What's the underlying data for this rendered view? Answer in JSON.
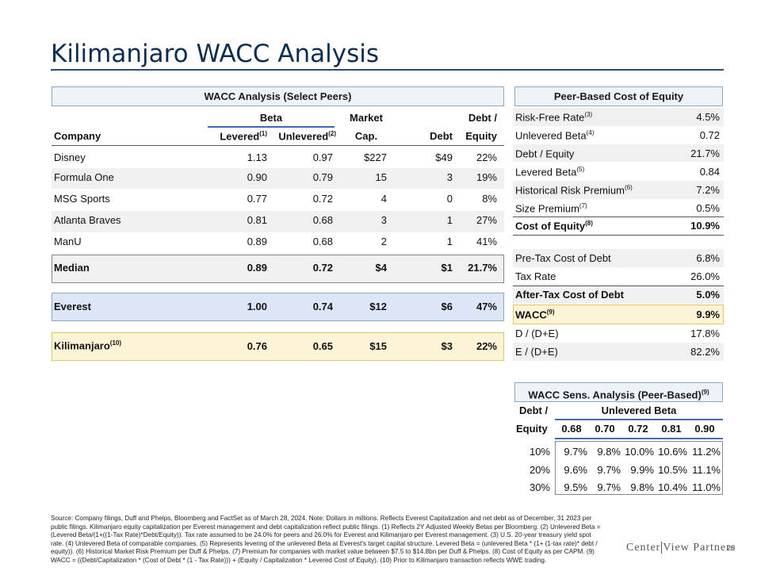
{
  "title": "Kilimanjaro WACC Analysis",
  "peers_table": {
    "banner": "WACC Analysis (Select Peers)",
    "group_headers": {
      "beta": "Beta",
      "market": "Market",
      "debt_equity": "Debt /"
    },
    "headers": {
      "company": "Company",
      "levered": "Levered",
      "levered_note": "(1)",
      "unlevered": "Unlevered",
      "unlevered_note": "(2)",
      "cap": "Cap.",
      "debt": "Debt",
      "equity": "Equity"
    },
    "rows": [
      {
        "company": "Disney",
        "levered": "1.13",
        "unlevered": "0.97",
        "cap": "$227",
        "debt": "$49",
        "de": "22%"
      },
      {
        "company": "Formula One",
        "levered": "0.90",
        "unlevered": "0.79",
        "cap": "15",
        "debt": "3",
        "de": "19%"
      },
      {
        "company": "MSG Sports",
        "levered": "0.77",
        "unlevered": "0.72",
        "cap": "4",
        "debt": "0",
        "de": "8%"
      },
      {
        "company": "Atlanta Braves",
        "levered": "0.81",
        "unlevered": "0.68",
        "cap": "3",
        "debt": "1",
        "de": "27%"
      },
      {
        "company": "ManU",
        "levered": "0.89",
        "unlevered": "0.68",
        "cap": "2",
        "debt": "1",
        "de": "41%"
      }
    ],
    "median": {
      "company": "Median",
      "levered": "0.89",
      "unlevered": "0.72",
      "cap": "$4",
      "debt": "$1",
      "de": "21.7%"
    },
    "everest": {
      "company": "Everest",
      "levered": "1.00",
      "unlevered": "0.74",
      "cap": "$12",
      "debt": "$6",
      "de": "47%"
    },
    "kilimanjaro": {
      "company": "Kilimanjaro",
      "note": "(10)",
      "levered": "0.76",
      "unlevered": "0.65",
      "cap": "$15",
      "debt": "$3",
      "de": "22%"
    }
  },
  "cost_of_equity": {
    "banner": "Peer-Based Cost of Equity",
    "rows": [
      {
        "label": "Risk-Free Rate",
        "note": "(3)",
        "value": "4.5%"
      },
      {
        "label": "Unlevered Beta",
        "note": "(4)",
        "value": "0.72"
      },
      {
        "label": "Debt / Equity",
        "note": "",
        "value": "21.7%"
      },
      {
        "label": "Levered Beta",
        "note": "(5)",
        "value": "0.84"
      },
      {
        "label": "Historical Risk Premium",
        "note": "(6)",
        "value": "7.2%"
      },
      {
        "label": "Size Premium",
        "note": "(7)",
        "value": "0.5%"
      }
    ],
    "total": {
      "label": "Cost of Equity",
      "note": "(8)",
      "value": "10.9%"
    },
    "debt_rows": [
      {
        "label": "Pre-Tax Cost of Debt",
        "value": "6.8%"
      },
      {
        "label": "Tax Rate",
        "value": "26.0%"
      }
    ],
    "after_tax": {
      "label": "After-Tax Cost of Debt",
      "value": "5.0%"
    },
    "wacc": {
      "label": "WACC",
      "note": "(9)",
      "value": "9.9%"
    },
    "cap_rows": [
      {
        "label": "D / (D+E)",
        "value": "17.8%"
      },
      {
        "label": "E / (D+E)",
        "value": "82.2%"
      }
    ]
  },
  "sensitivity": {
    "banner": "WACC Sens. Analysis (Peer-Based)",
    "banner_note": "(9)",
    "row_header_top": "Debt /",
    "row_header_bottom": "Equity",
    "col_group": "Unlevered Beta",
    "cols": [
      "0.68",
      "0.70",
      "0.72",
      "0.81",
      "0.90"
    ],
    "rows": [
      {
        "label": "10%",
        "values": [
          "9.7%",
          "9.8%",
          "10.0%",
          "10.6%",
          "11.2%"
        ]
      },
      {
        "label": "20%",
        "values": [
          "9.6%",
          "9.7%",
          "9.9%",
          "10.5%",
          "11.1%"
        ]
      },
      {
        "label": "30%",
        "values": [
          "9.5%",
          "9.7%",
          "9.8%",
          "10.4%",
          "11.0%"
        ]
      }
    ]
  },
  "footnote": "Source: Company filings, Duff and Phelps, Bloomberg and FactSet as of March 28, 2024. Note: Dollars in millions. Reflects Everest Capitalization and net debt as of December, 31 2023 per public filings. Kilimanjaro equity capitalization per Everest management and debt capitalization reflect public filings. (1) Reflects 2Y Adjusted Weekly Betas per Bloomberg. (2) Unlevered Beta = (Levered Beta/(1+((1-Tax Rate)*Debt/Equity)). Tax rate assumed to be 24.0% for peers and 26.0% for Everest and Kilimanjaro per Everest management. (3) U.S. 20-year treasury yield spot rate. (4) Unlevered Beta of comparable companies. (5) Represents levering of the unlevered Beta at Everest's target capital structure. Levered Beta = (unlevered Beta * (1+ (1-tax rate)* debt / equity)). (6) Historical Market Risk Premium per Duff & Phelps. (7) Premium for companies with market value between $7.5 to $14.8bn per Duff & Phelps. (8) Cost of Equity as per CAPM. (9) WACC = ((Debt/Capitalization * (Cost of Debt * (1 - Tax Rate))) + (Equity / Capitalization * Levered Cost of Equity). (10) Prior to Kilimanjaro transaction reflects WWE trading.",
  "logo": {
    "left": "Center",
    "right": "View Partners"
  },
  "page_number": "20"
}
